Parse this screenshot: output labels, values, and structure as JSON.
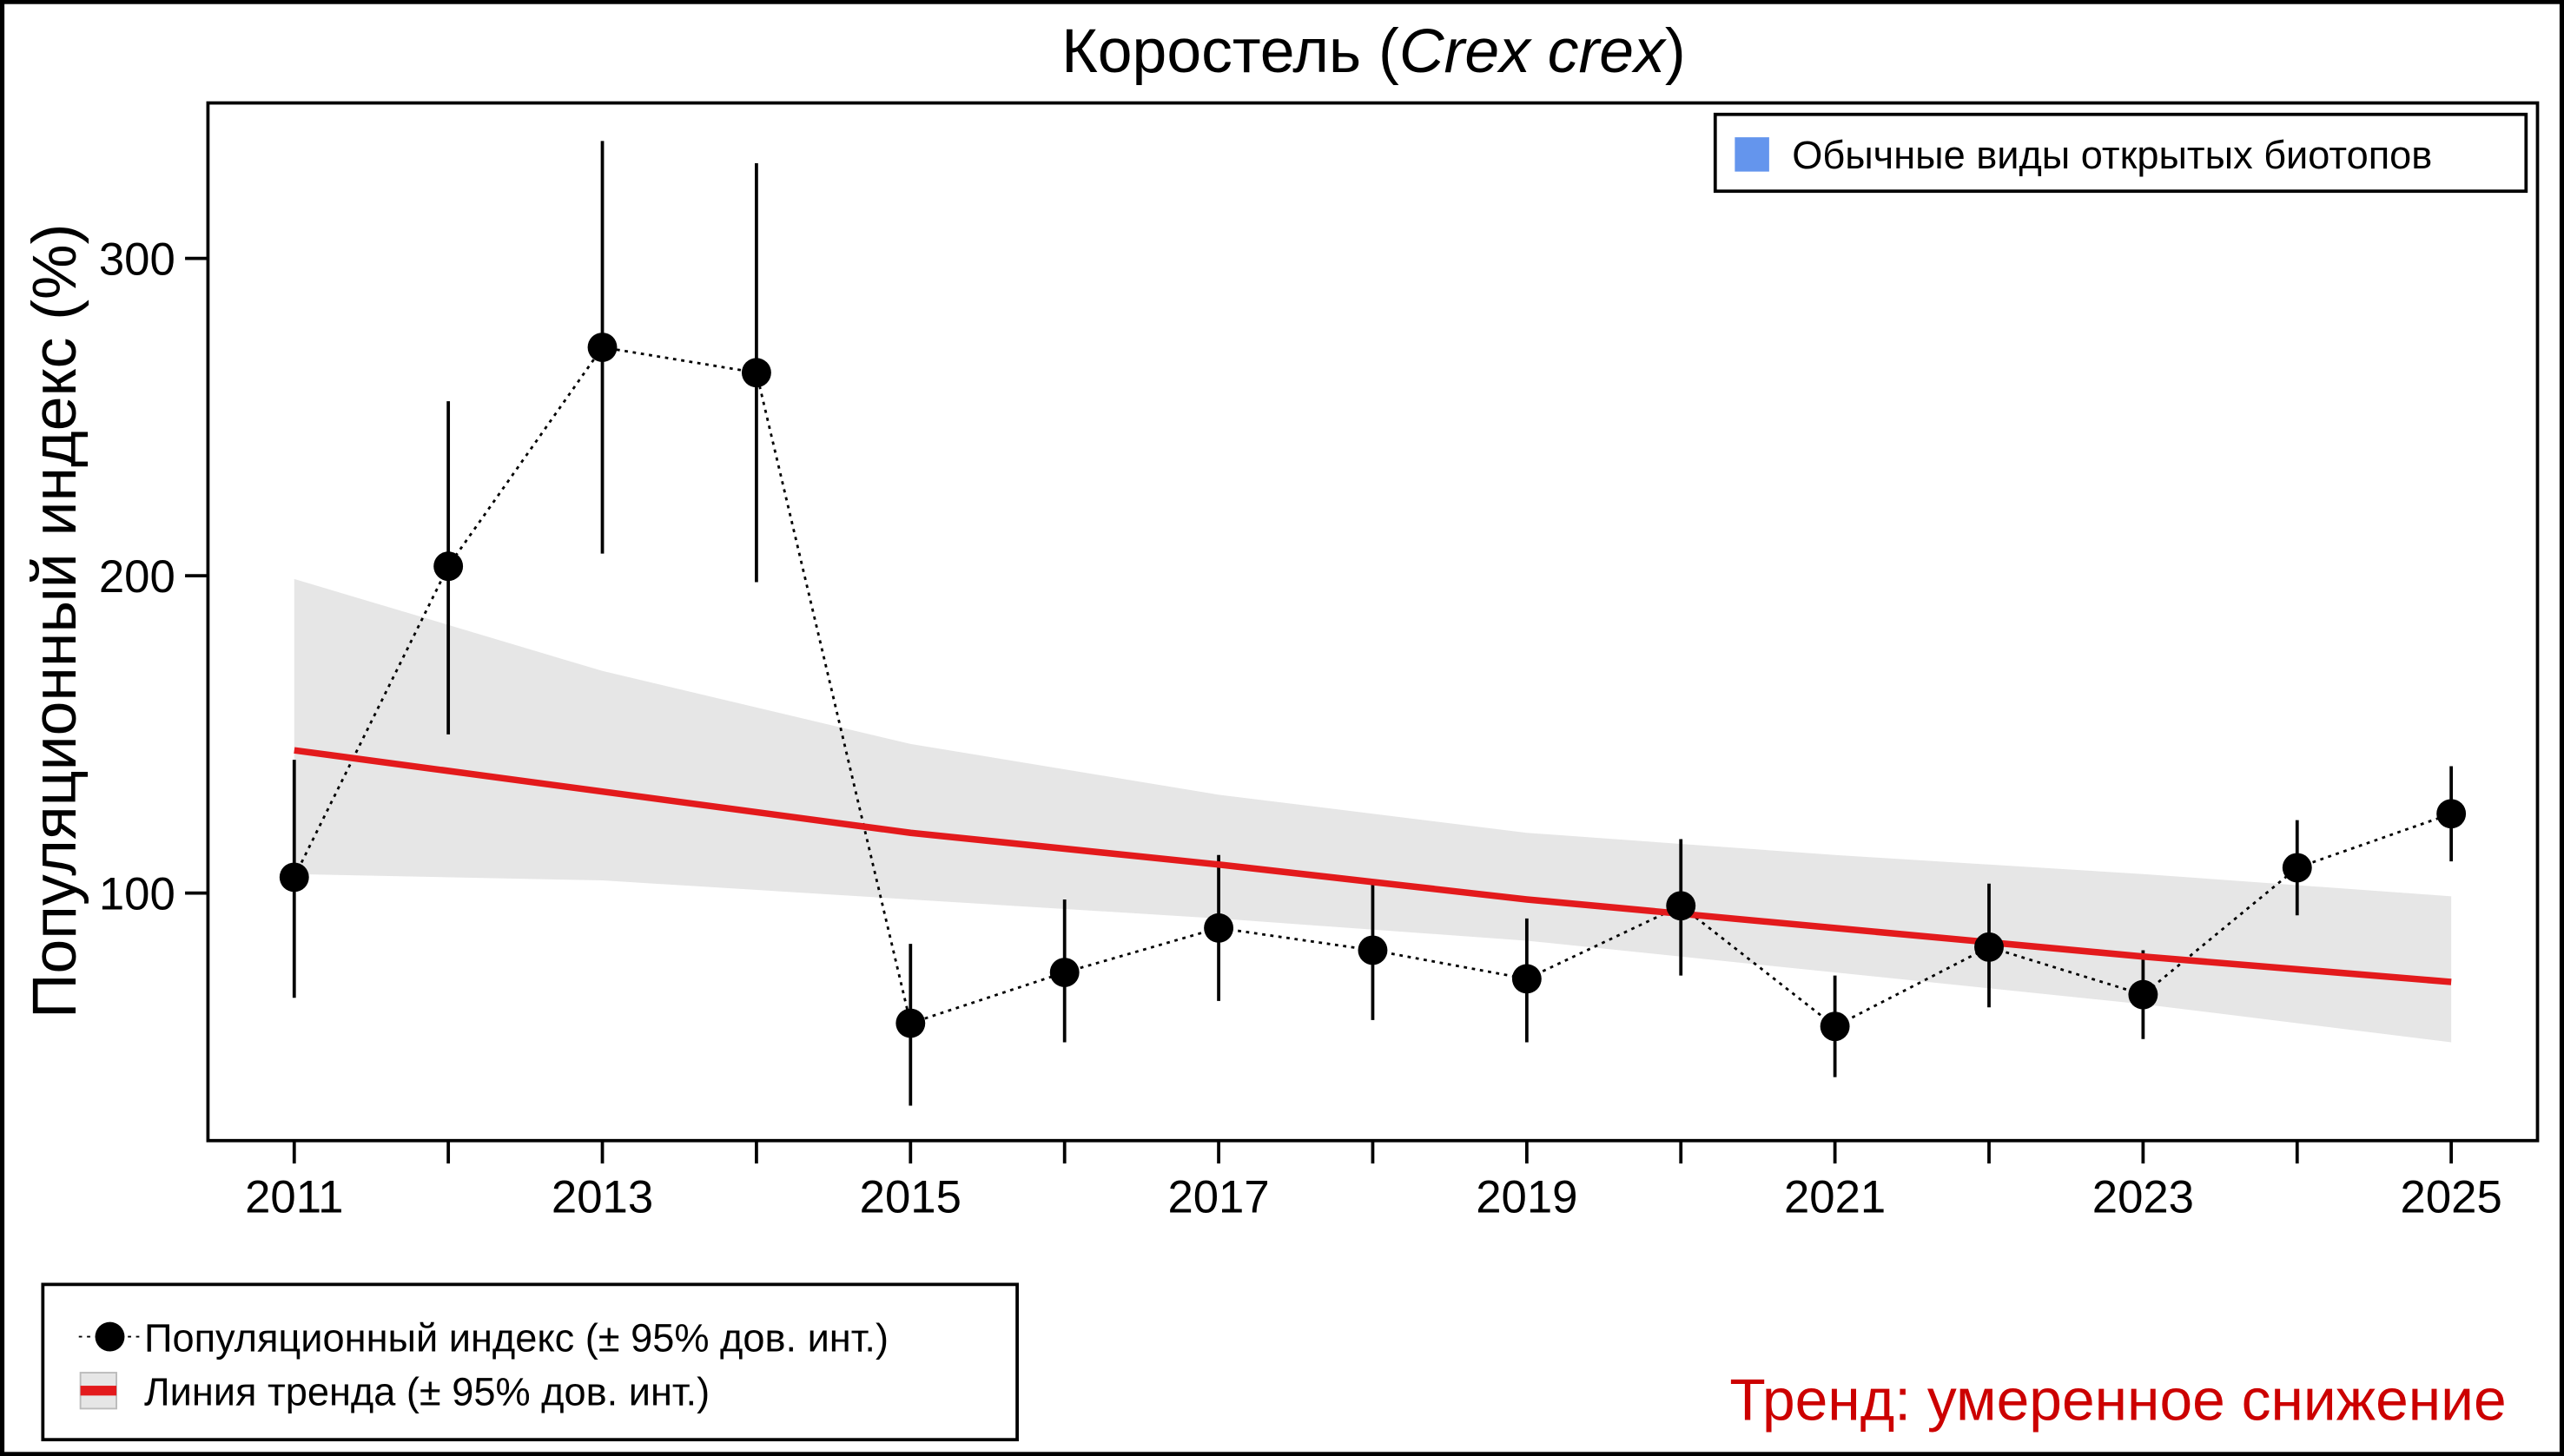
{
  "chart_data": {
    "type": "line",
    "title_main": "Коростель (",
    "title_italic": "Crex crex",
    "title_end": ")",
    "xlabel": "",
    "ylabel": "Популяционный индекс (%)",
    "xlim": [
      2010.44,
      2025.56
    ],
    "ylim": [
      22,
      349
    ],
    "grid": false,
    "x_ticks": [
      2011,
      2012,
      2013,
      2014,
      2015,
      2016,
      2017,
      2018,
      2019,
      2020,
      2021,
      2022,
      2023,
      2024,
      2025
    ],
    "x_tick_labels": [
      "2011",
      "",
      "2013",
      "",
      "2015",
      "",
      "2017",
      "",
      "2019",
      "",
      "2021",
      "",
      "2023",
      "",
      "2025"
    ],
    "y_ticks": [
      100,
      200,
      300
    ],
    "y_tick_labels": [
      "100",
      "200",
      "300"
    ],
    "index_series": {
      "name": "Популяционный индекс (± 95% дов. инт.)",
      "x": [
        2011,
        2012,
        2013,
        2014,
        2015,
        2016,
        2017,
        2018,
        2019,
        2020,
        2021,
        2022,
        2023,
        2024,
        2025
      ],
      "y": [
        105,
        203,
        272,
        264,
        59,
        75,
        89,
        82,
        73,
        96,
        58,
        83,
        68,
        108,
        125
      ],
      "ci_low": [
        67,
        150,
        207,
        198,
        33,
        53,
        66,
        60,
        53,
        74,
        42,
        64,
        54,
        93,
        110
      ],
      "ci_high": [
        142,
        255,
        337,
        330,
        84,
        98,
        112,
        104,
        92,
        117,
        74,
        103,
        82,
        123,
        140
      ],
      "color": "#000000"
    },
    "trend_series": {
      "name": "Линия тренда (± 95% дов. инт.)",
      "x": [
        2011,
        2013,
        2015,
        2017,
        2019,
        2021,
        2023,
        2025
      ],
      "y": [
        145,
        132,
        119,
        109,
        98,
        89,
        80,
        72
      ],
      "ci_low": [
        106,
        104,
        98,
        92,
        85,
        75,
        65,
        53
      ],
      "ci_high": [
        199,
        170,
        147,
        131,
        119,
        112,
        106,
        99
      ],
      "color": "#e31a1c",
      "band_color": "#e6e6e6"
    },
    "group_legend": {
      "label": "Обычные виды открытых биотопов",
      "color": "#6495ed",
      "position": "top-right"
    },
    "legend_position": "bottom-left",
    "trend_text": "Тренд: умеренное снижение",
    "trend_text_color": "#cc0000"
  }
}
